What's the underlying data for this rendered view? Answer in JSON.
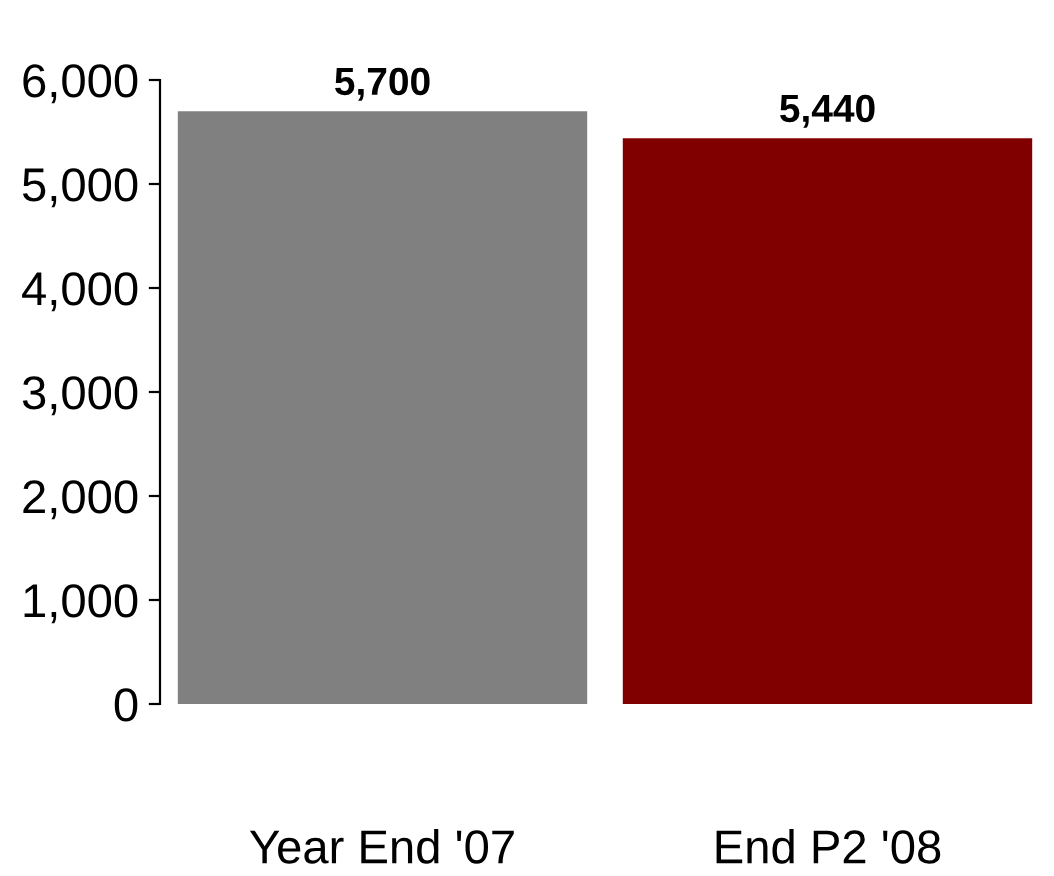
{
  "chart_data": {
    "type": "bar",
    "categories": [
      "Year End '07",
      "End P2 '08"
    ],
    "values": [
      5700,
      5440
    ],
    "colors": [
      "#808080",
      "#800000"
    ],
    "ylim": [
      0,
      6000
    ],
    "yticks": [
      {
        "value": 0,
        "label": "0"
      },
      {
        "value": 1000,
        "label": "1,000"
      },
      {
        "value": 2000,
        "label": "2,000"
      },
      {
        "value": 3000,
        "label": "3,000"
      },
      {
        "value": 4000,
        "label": "4,000"
      },
      {
        "value": 5000,
        "label": "5,000"
      },
      {
        "value": 6000,
        "label": "6,000"
      }
    ],
    "value_labels": [
      "5,700",
      "5,440"
    ],
    "grid": false,
    "legend": false
  }
}
